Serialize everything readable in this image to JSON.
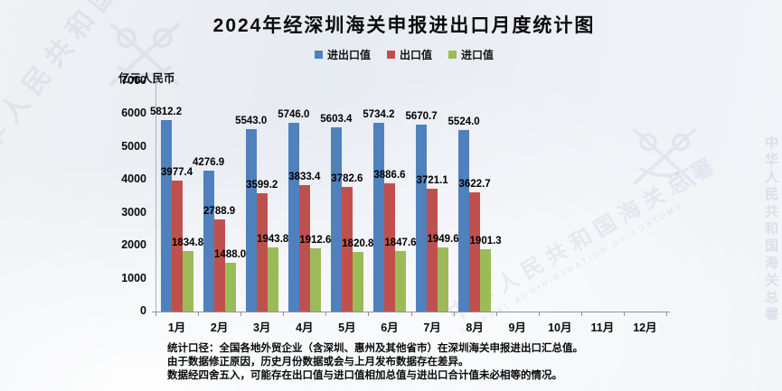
{
  "title": "2024年经深圳海关申报进出口月度统计图",
  "unit_label": "亿元人民币",
  "legend": [
    {
      "label": "进出口值",
      "color": "#4f81bd"
    },
    {
      "label": "出口值",
      "color": "#c0504d"
    },
    {
      "label": "进口值",
      "color": "#9bbb59"
    }
  ],
  "watermark": {
    "text": "中华人民共和国海关总署",
    "subtext": "GENERAL ADMINISTRATION OF CUSTOMS"
  },
  "notes": [
    "统计口径：全国各地外贸企业（含深圳、惠州及其他省市）在深圳海关申报进出口汇总值。",
    "由于数据修正原因，历史月份数据或会与上月发布数据存在差异。",
    "数据经四舍五入，可能存在出口值与进口值相加总值与进出口合计值未必相等的情况。"
  ],
  "chart_data": {
    "type": "bar",
    "title": "2024年经深圳海关申报进出口月度统计图",
    "ylabel": "亿元人民币",
    "ylim": [
      0,
      7000
    ],
    "ytick_step": 1000,
    "grid": false,
    "legend_position": "top",
    "categories": [
      "1月",
      "2月",
      "3月",
      "4月",
      "5月",
      "6月",
      "7月",
      "8月",
      "9月",
      "10月",
      "11月",
      "12月"
    ],
    "series": [
      {
        "name": "进出口值",
        "color": "#4f81bd",
        "values": [
          5812.2,
          4276.9,
          5543.0,
          5746.0,
          5603.4,
          5734.2,
          5670.7,
          5524.0,
          null,
          null,
          null,
          null
        ]
      },
      {
        "name": "出口值",
        "color": "#c0504d",
        "values": [
          3977.4,
          2788.9,
          3599.2,
          3833.4,
          3782.6,
          3886.6,
          3721.1,
          3622.7,
          null,
          null,
          null,
          null
        ]
      },
      {
        "name": "进口值",
        "color": "#9bbb59",
        "values": [
          1834.8,
          1488.0,
          1943.8,
          1912.6,
          1820.8,
          1847.6,
          1949.6,
          1901.3,
          null,
          null,
          null,
          null
        ]
      }
    ]
  }
}
